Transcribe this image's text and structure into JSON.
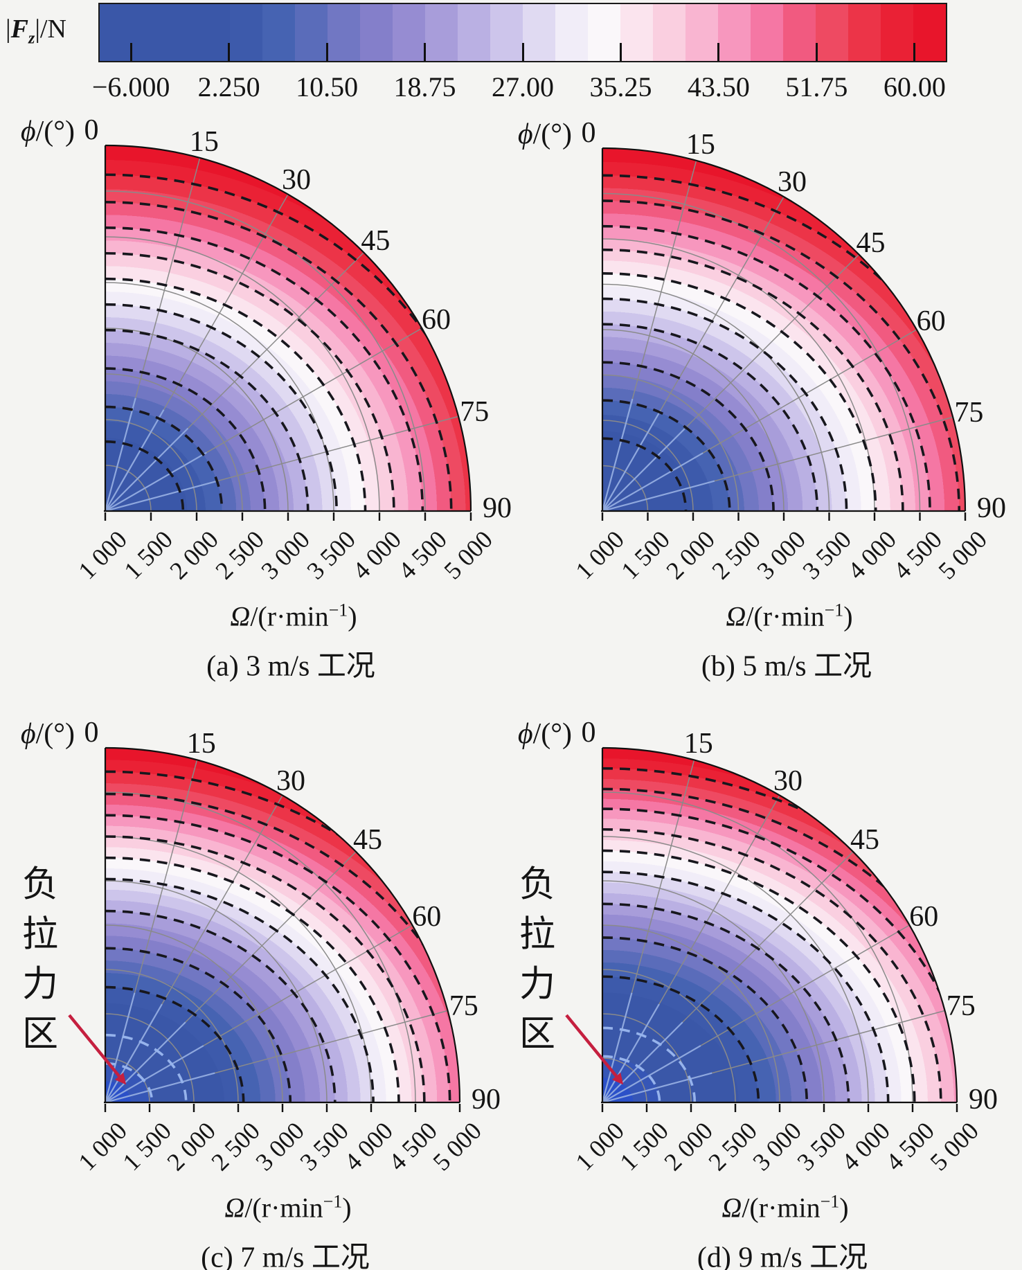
{
  "colorbar": {
    "title_parts": {
      "open": "|",
      "symbol": "F",
      "subscript": "z",
      "close": "|/N"
    },
    "tick_labels": [
      "−6.000",
      "2.250",
      "10.50",
      "18.75",
      "27.00",
      "35.25",
      "43.50",
      "51.75",
      "60.00"
    ],
    "segment_colors": [
      "#3A57A8",
      "#3A57A8",
      "#3A57A8",
      "#3A57A8",
      "#3D5AAB",
      "#4663B2",
      "#5A6CBA",
      "#7177C3",
      "#847FCA",
      "#968CD2",
      "#A89DDA",
      "#BAB0E3",
      "#CDC5EB",
      "#E0DAF2",
      "#F1EDF8",
      "#FAF7FA",
      "#FBE4EE",
      "#FACFE0",
      "#F9B5D1",
      "#F797BE",
      "#F577A4",
      "#F15A80",
      "#EE4A62",
      "#EC3448",
      "#EA2135",
      "#E8152B"
    ]
  },
  "axes": {
    "phi_symbol": "ϕ",
    "phi_rest": "/(°)",
    "omega_symbol": "Ω",
    "omega_pre": "/(r·min",
    "omega_sup": "−1",
    "omega_post": ")",
    "phi_tick_labels": [
      "0",
      "15",
      "30",
      "45",
      "60",
      "75",
      "90"
    ],
    "omega_tick_labels": [
      "1 000",
      "1 500",
      "2 000",
      "2 500",
      "3 000",
      "3 500",
      "4 000",
      "4 500",
      "5 000"
    ]
  },
  "annotation": {
    "chars": [
      "负",
      "拉",
      "力",
      "区"
    ],
    "arrow_color": "#C51F3F"
  },
  "chart_data": {
    "type": "heatmap",
    "title": "",
    "value_label": "|Fz|/N",
    "colorbar_tick_values": [
      -6.0,
      2.25,
      10.5,
      18.75,
      27.0,
      35.25,
      43.5,
      51.75,
      60.0
    ],
    "angular_axis": {
      "label": "ϕ/(°)",
      "tick_values": [
        0,
        15,
        30,
        45,
        60,
        75,
        90
      ],
      "range": [
        0,
        90
      ]
    },
    "radial_axis": {
      "label": "Ω/(r·min−1)",
      "tick_values": [
        1000,
        1500,
        2000,
        2500,
        3000,
        3500,
        4000,
        4500,
        5000
      ],
      "range": [
        1000,
        5000
      ]
    },
    "legend_position": "top-colorbar",
    "grid": true,
    "pattern_note": "|Fz| grows from dark-blue minimum near Ω=1000 to red maximum at Ω=5000; bands shift outward as ϕ goes 0°→90°; 7 and 9 m/s cases show a negative-thrust pocket at the origin",
    "subplots": [
      {
        "id": "a",
        "caption": "(a) 3 m/s 工况",
        "wind_mps": 3,
        "has_negative_zone": false,
        "band_end_fractions_phi0": [
          0.05,
          0.1,
          0.15,
          0.2,
          0.245,
          0.285,
          0.32,
          0.355,
          0.39,
          0.425,
          0.46,
          0.495,
          0.53,
          0.565,
          0.6,
          0.635,
          0.67,
          0.705,
          0.74,
          0.775,
          0.81,
          0.845,
          0.88,
          0.92,
          0.96,
          1.0
        ],
        "radial_stretch_phi90": 1.12,
        "core_colors": [],
        "dashed_contours": [
          {
            "f": 0.19,
            "light": false
          },
          {
            "f": 0.285,
            "light": false
          },
          {
            "f": 0.39,
            "light": false
          },
          {
            "f": 0.495,
            "light": false
          },
          {
            "f": 0.565,
            "light": false
          },
          {
            "f": 0.635,
            "light": false
          },
          {
            "f": 0.705,
            "light": false
          },
          {
            "f": 0.775,
            "light": false
          },
          {
            "f": 0.845,
            "light": false
          },
          {
            "f": 0.92,
            "light": false
          }
        ]
      },
      {
        "id": "b",
        "caption": "(b) 5 m/s 工况",
        "wind_mps": 5,
        "has_negative_zone": false,
        "band_end_fractions_phi0": [
          0.05,
          0.11,
          0.17,
          0.22,
          0.265,
          0.305,
          0.34,
          0.375,
          0.41,
          0.445,
          0.48,
          0.515,
          0.55,
          0.585,
          0.62,
          0.655,
          0.69,
          0.72,
          0.75,
          0.785,
          0.82,
          0.855,
          0.89,
          0.925,
          0.962,
          1.0
        ],
        "radial_stretch_phi90": 1.15,
        "core_colors": [],
        "dashed_contours": [
          {
            "f": 0.2,
            "light": false
          },
          {
            "f": 0.305,
            "light": false
          },
          {
            "f": 0.41,
            "light": false
          },
          {
            "f": 0.515,
            "light": false
          },
          {
            "f": 0.585,
            "light": false
          },
          {
            "f": 0.655,
            "light": false
          },
          {
            "f": 0.72,
            "light": false
          },
          {
            "f": 0.785,
            "light": false
          },
          {
            "f": 0.855,
            "light": false
          },
          {
            "f": 0.925,
            "light": false
          }
        ]
      },
      {
        "id": "c",
        "caption": "(c) 7 m/s 工况",
        "wind_mps": 7,
        "has_negative_zone": true,
        "band_end_fractions_phi0": [
          0.06,
          0.11,
          0.22,
          0.28,
          0.325,
          0.365,
          0.4,
          0.435,
          0.47,
          0.505,
          0.54,
          0.57,
          0.6,
          0.63,
          0.66,
          0.69,
          0.72,
          0.75,
          0.78,
          0.81,
          0.84,
          0.87,
          0.9,
          0.933,
          0.966,
          1.0
        ],
        "radial_stretch_phi90": 1.2,
        "core_colors": [
          "#2B50C8",
          "#3656B6"
        ],
        "dashed_contours": [
          {
            "f": 0.11,
            "light": true
          },
          {
            "f": 0.19,
            "light": true
          },
          {
            "f": 0.325,
            "light": false
          },
          {
            "f": 0.435,
            "light": false
          },
          {
            "f": 0.54,
            "light": false
          },
          {
            "f": 0.63,
            "light": false
          },
          {
            "f": 0.69,
            "light": false
          },
          {
            "f": 0.75,
            "light": false
          },
          {
            "f": 0.81,
            "light": false
          },
          {
            "f": 0.87,
            "light": false
          },
          {
            "f": 0.933,
            "light": false
          }
        ]
      },
      {
        "id": "d",
        "caption": "(d) 9 m/s 工况",
        "wind_mps": 9,
        "has_negative_zone": true,
        "band_end_fractions_phi0": [
          0.07,
          0.13,
          0.25,
          0.31,
          0.355,
          0.395,
          0.43,
          0.465,
          0.5,
          0.53,
          0.56,
          0.59,
          0.62,
          0.65,
          0.68,
          0.71,
          0.74,
          0.77,
          0.8,
          0.828,
          0.856,
          0.884,
          0.912,
          0.942,
          0.97,
          1.0
        ],
        "radial_stretch_phi90": 1.24,
        "core_colors": [
          "#2B50C8",
          "#3656B6"
        ],
        "dashed_contours": [
          {
            "f": 0.13,
            "light": true
          },
          {
            "f": 0.21,
            "light": true
          },
          {
            "f": 0.355,
            "light": false
          },
          {
            "f": 0.465,
            "light": false
          },
          {
            "f": 0.56,
            "light": false
          },
          {
            "f": 0.65,
            "light": false
          },
          {
            "f": 0.71,
            "light": false
          },
          {
            "f": 0.77,
            "light": false
          },
          {
            "f": 0.828,
            "light": false
          },
          {
            "f": 0.884,
            "light": false
          },
          {
            "f": 0.942,
            "light": false
          }
        ]
      }
    ]
  }
}
